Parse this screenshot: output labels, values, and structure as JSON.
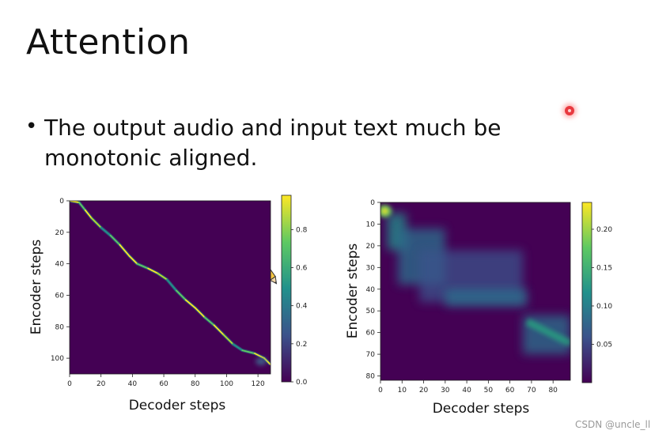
{
  "slide": {
    "title": "Attention",
    "bullet_symbol": "•",
    "bullet_line1": "The output audio and input text much be",
    "bullet_line2": "monotonic aligned.",
    "watermark": "CSDN @uncle_ll"
  },
  "colors": {
    "viridis_low": "#440154",
    "viridis_mid": "#21918c",
    "viridis_high": "#fde725",
    "background": "#ffffff"
  },
  "chart_data": [
    {
      "type": "heatmap",
      "xlabel": "Decoder steps",
      "ylabel": "Encoder steps",
      "xlim": [
        0,
        128
      ],
      "ylim": [
        0,
        110
      ],
      "y_inverted": true,
      "xticks": [
        0,
        20,
        40,
        60,
        80,
        100,
        120
      ],
      "yticks": [
        0,
        20,
        40,
        60,
        80,
        100
      ],
      "colorbar_range": [
        0,
        0.98
      ],
      "colorbar_ticks": [
        "0.0",
        "0.2",
        "0.4",
        "0.6",
        "0.8"
      ],
      "alignment_path": [
        {
          "x": 0,
          "y": 0
        },
        {
          "x": 6,
          "y": 1
        },
        {
          "x": 10,
          "y": 6
        },
        {
          "x": 14,
          "y": 11
        },
        {
          "x": 20,
          "y": 17
        },
        {
          "x": 26,
          "y": 22
        },
        {
          "x": 32,
          "y": 28
        },
        {
          "x": 38,
          "y": 35
        },
        {
          "x": 43,
          "y": 40
        },
        {
          "x": 50,
          "y": 43
        },
        {
          "x": 56,
          "y": 46
        },
        {
          "x": 62,
          "y": 50
        },
        {
          "x": 68,
          "y": 57
        },
        {
          "x": 74,
          "y": 63
        },
        {
          "x": 80,
          "y": 68
        },
        {
          "x": 86,
          "y": 74
        },
        {
          "x": 92,
          "y": 79
        },
        {
          "x": 98,
          "y": 85
        },
        {
          "x": 104,
          "y": 91
        },
        {
          "x": 110,
          "y": 95
        },
        {
          "x": 118,
          "y": 97
        },
        {
          "x": 124,
          "y": 100
        },
        {
          "x": 128,
          "y": 104
        }
      ]
    },
    {
      "type": "heatmap",
      "xlabel": "Decoder steps",
      "ylabel": "Encoder steps",
      "xlim": [
        0,
        88
      ],
      "ylim": [
        0,
        82
      ],
      "y_inverted": true,
      "xticks": [
        0,
        10,
        20,
        30,
        40,
        50,
        60,
        70,
        80
      ],
      "yticks": [
        0,
        10,
        20,
        30,
        40,
        50,
        60,
        70,
        80
      ],
      "colorbar_range": [
        0,
        0.235
      ],
      "colorbar_ticks": [
        "0.05",
        "0.10",
        "0.15",
        "0.20"
      ],
      "hotspot": {
        "x": 2,
        "y": 4,
        "value": 0.22
      },
      "diffuse_regions": [
        {
          "x0": 3,
          "x1": 12,
          "y0": 5,
          "y1": 22,
          "value": 0.1
        },
        {
          "x0": 8,
          "x1": 30,
          "y0": 12,
          "y1": 38,
          "value": 0.06
        },
        {
          "x0": 18,
          "x1": 66,
          "y0": 22,
          "y1": 46,
          "value": 0.05
        },
        {
          "x0": 30,
          "x1": 68,
          "y0": 40,
          "y1": 48,
          "value": 0.07
        },
        {
          "x0": 66,
          "x1": 88,
          "y0": 52,
          "y1": 70,
          "value": 0.09
        }
      ]
    }
  ]
}
